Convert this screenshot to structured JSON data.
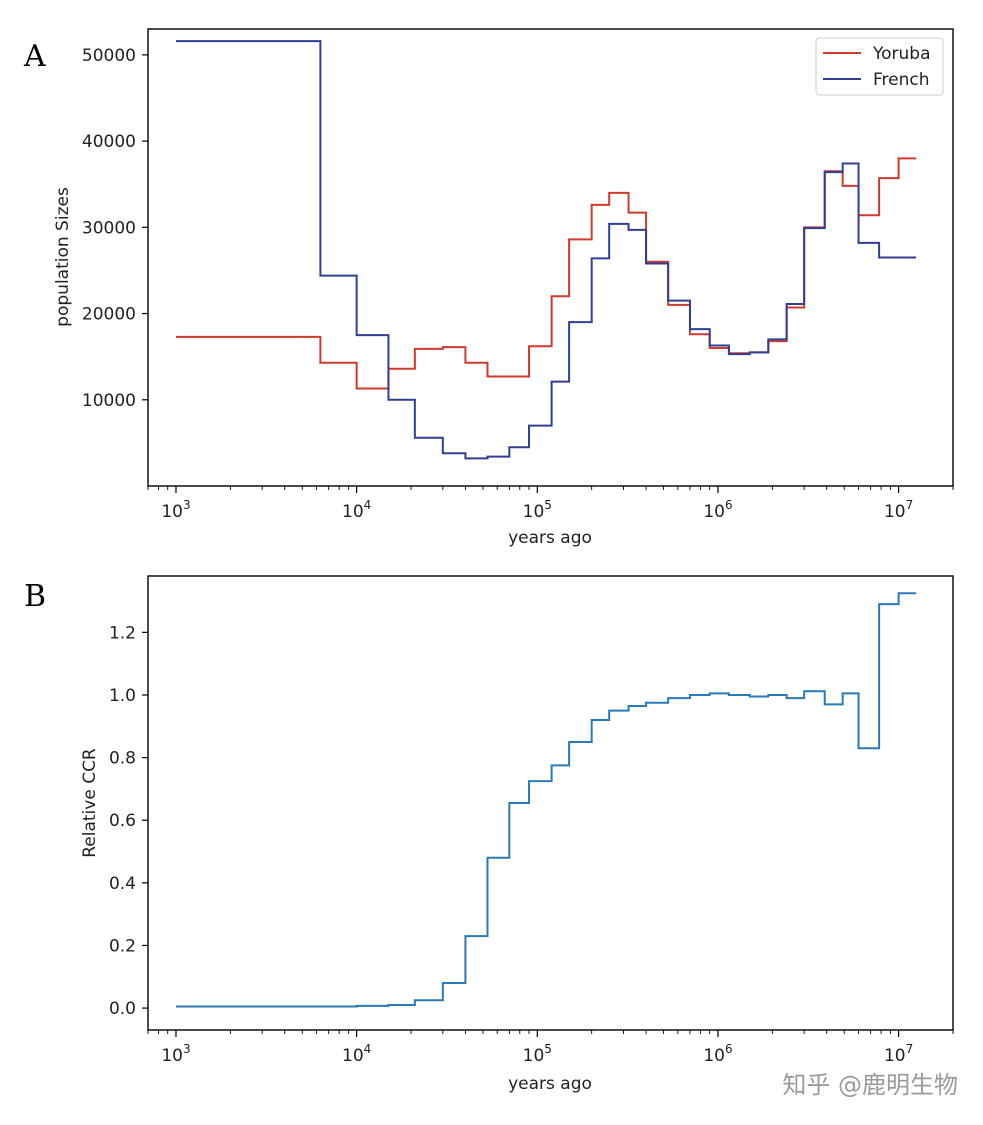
{
  "watermark": "知乎 @鹿明生物",
  "colors": {
    "yoruba": "#d03a2a",
    "french": "#2f3f94",
    "ccr": "#2a7ab8"
  },
  "chart_data": [
    {
      "panel": "A",
      "type": "line",
      "step": true,
      "xscale": "log",
      "xlim": [
        700,
        20000000
      ],
      "ylim": [
        0,
        53000
      ],
      "xlabel": "years ago",
      "ylabel": "population Sizes",
      "legend_position": "top-right",
      "xticks": [
        {
          "base": "10",
          "exp": "3"
        },
        {
          "base": "10",
          "exp": "4"
        },
        {
          "base": "10",
          "exp": "5"
        },
        {
          "base": "10",
          "exp": "6"
        },
        {
          "base": "10",
          "exp": "7"
        }
      ],
      "yticks": [
        "10000",
        "20000",
        "30000",
        "40000",
        "50000"
      ],
      "series": [
        {
          "name": "Yoruba",
          "color": "#d03a2a",
          "x": [
            1000,
            6300,
            10000,
            15000,
            21000,
            30000,
            40000,
            53000,
            70000,
            90000,
            120000,
            150000,
            200000,
            250000,
            320000,
            400000,
            530000,
            700000,
            900000,
            1150000,
            1500000,
            1900000,
            2400000,
            3000000,
            3900000,
            4900000,
            6000000,
            7800000,
            10000000,
            12500000
          ],
          "y": [
            17300,
            14300,
            11300,
            13600,
            15900,
            16100,
            14300,
            12700,
            12700,
            16200,
            22000,
            28600,
            32600,
            34000,
            31700,
            26000,
            21000,
            17600,
            16000,
            15400,
            15500,
            16800,
            20700,
            30000,
            36500,
            34800,
            31400,
            35700,
            38000,
            38000
          ]
        },
        {
          "name": "French",
          "color": "#2f3f94",
          "x": [
            1000,
            6300,
            10000,
            15000,
            21000,
            30000,
            40000,
            53000,
            70000,
            90000,
            120000,
            150000,
            200000,
            250000,
            320000,
            400000,
            530000,
            700000,
            900000,
            1150000,
            1500000,
            1900000,
            2400000,
            3000000,
            3900000,
            4900000,
            6000000,
            7800000,
            10000000,
            12500000
          ],
          "y": [
            51600,
            24400,
            17500,
            10000,
            5600,
            3800,
            3200,
            3400,
            4500,
            7000,
            12100,
            19000,
            26400,
            30400,
            29700,
            25800,
            21500,
            18200,
            16300,
            15300,
            15500,
            17000,
            21100,
            29900,
            36400,
            37400,
            28200,
            26500,
            26500,
            26500
          ]
        }
      ]
    },
    {
      "panel": "B",
      "type": "line",
      "step": true,
      "xscale": "log",
      "xlim": [
        700,
        20000000
      ],
      "ylim": [
        -0.07,
        1.38
      ],
      "xlabel": "years ago",
      "ylabel": "Relative CCR",
      "xticks": [
        {
          "base": "10",
          "exp": "3"
        },
        {
          "base": "10",
          "exp": "4"
        },
        {
          "base": "10",
          "exp": "5"
        },
        {
          "base": "10",
          "exp": "6"
        },
        {
          "base": "10",
          "exp": "7"
        }
      ],
      "yticks": [
        "0.0",
        "0.2",
        "0.4",
        "0.6",
        "0.8",
        "1.0",
        "1.2"
      ],
      "series": [
        {
          "name": "Relative CCR",
          "color": "#2a7ab8",
          "x": [
            1000,
            6300,
            10000,
            15000,
            21000,
            30000,
            40000,
            53000,
            70000,
            90000,
            120000,
            150000,
            200000,
            250000,
            320000,
            400000,
            530000,
            700000,
            900000,
            1150000,
            1500000,
            1900000,
            2400000,
            3000000,
            3900000,
            4900000,
            6000000,
            7800000,
            10000000,
            12500000
          ],
          "y": [
            0.005,
            0.005,
            0.007,
            0.01,
            0.025,
            0.08,
            0.23,
            0.48,
            0.655,
            0.725,
            0.775,
            0.85,
            0.92,
            0.95,
            0.965,
            0.975,
            0.99,
            1.0,
            1.005,
            1.0,
            0.995,
            1.0,
            0.99,
            1.012,
            0.97,
            1.005,
            0.83,
            1.29,
            1.325,
            1.325
          ]
        }
      ]
    }
  ]
}
